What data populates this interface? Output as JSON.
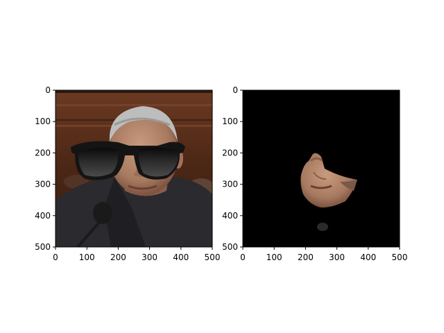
{
  "chart_data": [
    {
      "type": "image",
      "image_content": "photo of a grey-haired man in a dark suit with cartoon black sunglasses overlaid on his eyes, wood-panelled background, microphone in lower left",
      "xlim": [
        0,
        500
      ],
      "ylim": [
        500,
        0
      ],
      "x_ticks": [
        "0",
        "100",
        "200",
        "300",
        "400",
        "500"
      ],
      "y_ticks": [
        "0",
        "100",
        "200",
        "300",
        "400",
        "500"
      ],
      "grid": false,
      "title": "",
      "xlabel": "",
      "ylabel": ""
    },
    {
      "type": "image",
      "image_content": "black background with a cutout of the lower half of the same face (nose, mouth, chin) visible, small dark blob below",
      "xlim": [
        0,
        500
      ],
      "ylim": [
        500,
        0
      ],
      "x_ticks": [
        "0",
        "100",
        "200",
        "300",
        "400",
        "500"
      ],
      "y_ticks": [
        "0",
        "100",
        "200",
        "300",
        "400",
        "500"
      ],
      "grid": false,
      "title": "",
      "xlabel": "",
      "ylabel": ""
    }
  ],
  "colors": {
    "skin": "#b88a6e",
    "skin_shadow": "#8a5e48",
    "hair": "#bdbdbd",
    "suit": "#2b2a2e",
    "wood": "#5a2f1c",
    "sunglasses": "#141414",
    "mask_background": "#000000"
  }
}
